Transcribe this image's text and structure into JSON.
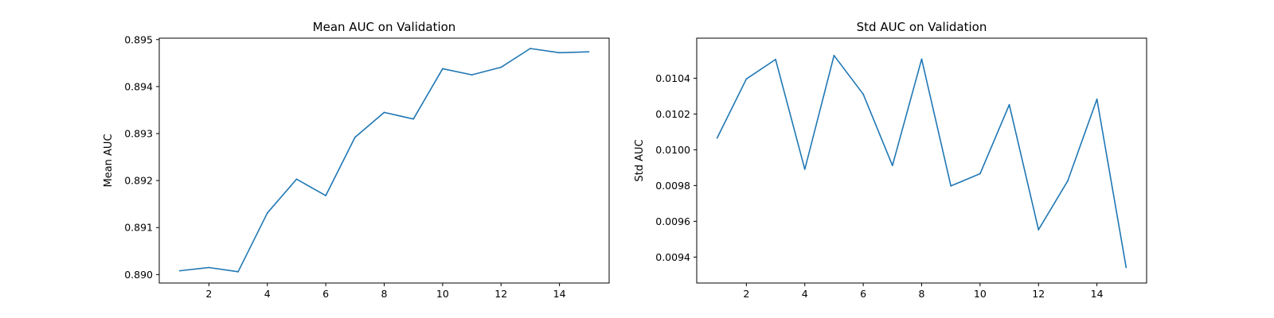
{
  "chart_data": [
    {
      "type": "line",
      "title": "Mean AUC on Validation",
      "xlabel": "",
      "ylabel": "Mean AUC",
      "xlim": [
        0.3,
        15.7
      ],
      "ylim": [
        0.88982,
        0.89503
      ],
      "xticks": [
        2,
        4,
        6,
        8,
        10,
        12,
        14
      ],
      "yticks": [
        0.89,
        0.891,
        0.892,
        0.893,
        0.894,
        0.895
      ],
      "ytick_labels": [
        "0.890",
        "0.891",
        "0.892",
        "0.893",
        "0.894",
        "0.895"
      ],
      "grid": false,
      "line_color": "#1f77b4",
      "series": [
        {
          "x": [
            1,
            2,
            3,
            4,
            5,
            6,
            7,
            8,
            9,
            10,
            11,
            12,
            13,
            14,
            15
          ],
          "values": [
            0.89008,
            0.89015,
            0.89006,
            0.89131,
            0.89203,
            0.89168,
            0.89292,
            0.89345,
            0.89331,
            0.89438,
            0.89425,
            0.89441,
            0.89481,
            0.89472,
            0.89474
          ]
        }
      ]
    },
    {
      "type": "line",
      "title": "Std AUC on Validation",
      "xlabel": "",
      "ylabel": "Std AUC",
      "xlim": [
        0.3,
        15.7
      ],
      "ylim": [
        0.009255,
        0.010624
      ],
      "xticks": [
        2,
        4,
        6,
        8,
        10,
        12,
        14
      ],
      "yticks": [
        0.0094,
        0.0096,
        0.0098,
        0.01,
        0.0102,
        0.0104
      ],
      "ytick_labels": [
        "0.0094",
        "0.0096",
        "0.0098",
        "0.0100",
        "0.0102",
        "0.0104"
      ],
      "grid": false,
      "line_color": "#1f77b4",
      "series": [
        {
          "x": [
            1,
            2,
            3,
            4,
            5,
            6,
            7,
            8,
            9,
            10,
            11,
            12,
            13,
            14,
            15
          ],
          "values": [
            0.010066,
            0.010396,
            0.010505,
            0.009891,
            0.010527,
            0.010311,
            0.009912,
            0.010507,
            0.009798,
            0.009866,
            0.010252,
            0.009553,
            0.009826,
            0.010283,
            0.009342
          ]
        }
      ]
    }
  ]
}
